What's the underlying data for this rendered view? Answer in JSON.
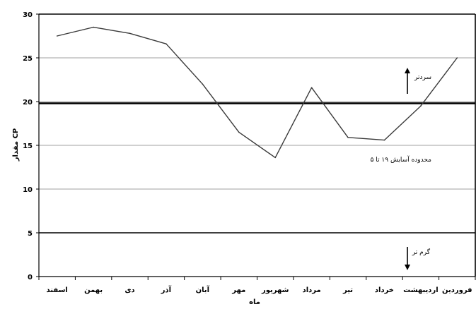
{
  "chart_data": {
    "type": "line",
    "xlabel": "ماه",
    "ylabel": "مقدار CP",
    "ylim": [
      0,
      30
    ],
    "yticks": [
      0,
      5,
      10,
      15,
      20,
      25,
      30
    ],
    "grid": "horizontal",
    "categories": [
      "فروردین",
      "اردیبهشت",
      "خرداد",
      "تیر",
      "مرداد",
      "شهریور",
      "مهر",
      "آبان",
      "آذر",
      "دی",
      "بهمن",
      "اسفند"
    ],
    "series": [
      {
        "values": [
          25.0,
          19.5,
          15.6,
          15.9,
          21.6,
          13.6,
          16.5,
          22.0,
          26.6,
          27.8,
          28.5,
          27.5
        ]
      }
    ],
    "reference_lines": [
      {
        "value": 19.8,
        "label": ""
      },
      {
        "value": 5,
        "label": ""
      }
    ],
    "annotations": {
      "cool_label": "سردتر",
      "comfort_label": "محدوده آسایش ۱۹ تا ۵",
      "warm_label": "گرم تر"
    }
  }
}
